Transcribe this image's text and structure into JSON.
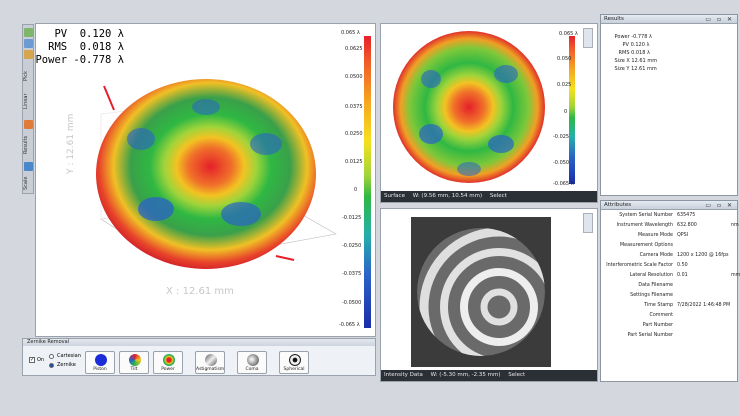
{
  "readouts": {
    "pv": "PV  0.120 λ",
    "rms": "RMS  0.018 λ",
    "power": "Power -0.778 λ"
  },
  "toolstrip": {
    "items": [
      "Pick",
      "Linear",
      "Results",
      "Scale"
    ]
  },
  "plot3d": {
    "y_axis_label": "Y : 12.61 mm",
    "x_axis_label": "X : 12.61 mm",
    "colorbar_ticks": [
      "0.065 λ",
      "0.0625",
      "0.0500",
      "0.0375",
      "0.0250",
      "0.0125",
      "0",
      "-0.0125",
      "-0.0250",
      "-0.0375",
      "-0.0500",
      "-0.065 λ"
    ]
  },
  "surface": {
    "colorbar_ticks": [
      "0.065 λ",
      "0.050",
      "0.025",
      "0",
      "-0.025",
      "-0.050",
      "-0.065 λ"
    ],
    "status": {
      "name": "Surface",
      "coords": "W: (9.56 mm, 10.54 mm)",
      "mode": "Select"
    }
  },
  "intensity": {
    "status": {
      "name": "Intensity Data",
      "coords": "W: (-5.30 mm, -2.35 mm)",
      "mode": "Select"
    }
  },
  "results": {
    "title": "Results",
    "rows": [
      {
        "k": "Power",
        "v": "-0.778",
        "u": "λ"
      },
      {
        "k": "PV",
        "v": "0.120",
        "u": "λ"
      },
      {
        "k": "RMS",
        "v": "0.018",
        "u": "λ"
      },
      {
        "k": "Size X",
        "v": "12.61",
        "u": "mm"
      },
      {
        "k": "Size Y",
        "v": "12.61",
        "u": "mm"
      }
    ]
  },
  "attributes": {
    "title": "Attributes",
    "rows": [
      {
        "k": "System Serial Number",
        "v": "635475",
        "u": ""
      },
      {
        "k": "Instrument Wavelength",
        "v": "632.800",
        "u": "nm"
      },
      {
        "k": "Measure Mode",
        "v": "QPSI",
        "u": ""
      },
      {
        "k": "Measurement Options",
        "v": "",
        "u": ""
      },
      {
        "k": "Camera Mode",
        "v": "1200 x 1200 @ 16fps",
        "u": ""
      },
      {
        "k": "Interferometric Scale Factor",
        "v": "0.50",
        "u": ""
      },
      {
        "k": "Lateral Resolution",
        "v": "0.01",
        "u": "mm"
      },
      {
        "k": "Data Filename",
        "v": "",
        "u": ""
      },
      {
        "k": "Settings Filename",
        "v": "",
        "u": ""
      },
      {
        "k": "Time Stamp",
        "v": "7/28/2022 1:46:48 PM",
        "u": ""
      },
      {
        "k": "Comment",
        "v": "",
        "u": ""
      },
      {
        "k": "Part Number",
        "v": "",
        "u": ""
      },
      {
        "k": "Part Serial Number",
        "v": "",
        "u": ""
      }
    ]
  },
  "zernike": {
    "title": "Zernike Removal",
    "on_label": "On",
    "radio_cartesian": "Cartesian",
    "radio_zernike": "Zernike",
    "buttons": [
      "Piston",
      "Tilt",
      "Power",
      "Astigmatism",
      "Coma",
      "Spherical"
    ]
  },
  "colors": {
    "red": "#e5202a",
    "green": "#2fb843",
    "blue": "#1a2da8",
    "status_bg": "#2b2f36"
  }
}
